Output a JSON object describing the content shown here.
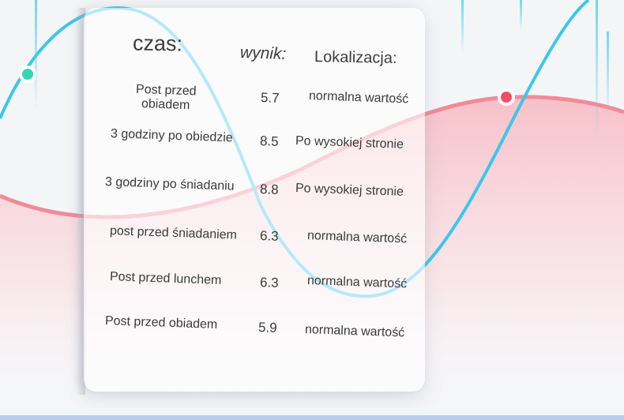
{
  "table": {
    "headers": {
      "time": "czas:",
      "score": "wynik:",
      "location": "Lokalizacja:"
    },
    "rows": [
      {
        "time": "Post przed obiadem",
        "score": "5.7",
        "location": "normalna wartość"
      },
      {
        "time": "3 godziny po obiedzie",
        "score": "8.5",
        "location": "Po wysokiej stronie"
      },
      {
        "time": "3 godziny po śniadaniu",
        "score": "8.8",
        "location": "Po wysokiej stronie"
      },
      {
        "time": "post przed śniadaniem",
        "score": "6.3",
        "location": "normalna wartość"
      },
      {
        "time": "Post przed lunchem",
        "score": "6.3",
        "location": "normalna wartość"
      },
      {
        "time": "Post przed obiadem",
        "score": "5.9",
        "location": "normalna wartość"
      }
    ]
  },
  "colors": {
    "blue_wave": "#3ec6ea",
    "pink_wave": "#f28a98",
    "green_marker": "#35d6b8",
    "red_marker": "#ee5068",
    "background": "#f4f5f7"
  }
}
